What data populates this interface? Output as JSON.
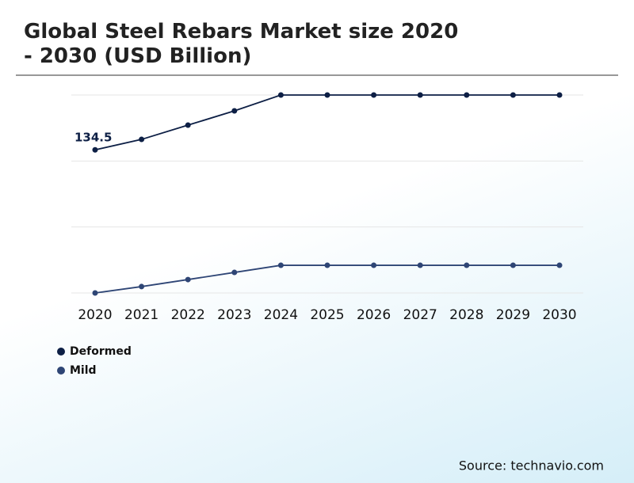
{
  "chart_data": {
    "type": "line",
    "title": "Global Steel Rebars Market size 2020 - 2030 (USD Billion)",
    "categories": [
      "2020",
      "2021",
      "2022",
      "2023",
      "2024",
      "2025",
      "2026",
      "2027",
      "2028",
      "2029",
      "2030"
    ],
    "series": [
      {
        "name": "Deformed",
        "color": "#0d1f45",
        "values": [
          134.5,
          144.3,
          157.7,
          171.1,
          186,
          186,
          186,
          186,
          186,
          186,
          186
        ]
      },
      {
        "name": "Mild",
        "color": "#2e4575",
        "values": [
          0,
          6,
          12.6,
          19.3,
          26,
          26,
          26,
          26,
          26,
          26,
          26
        ]
      }
    ],
    "ylim": [
      0,
      186
    ],
    "yticks": [
      0,
      62,
      124,
      186
    ],
    "grid": true,
    "source": "Source: technavio.com"
  }
}
